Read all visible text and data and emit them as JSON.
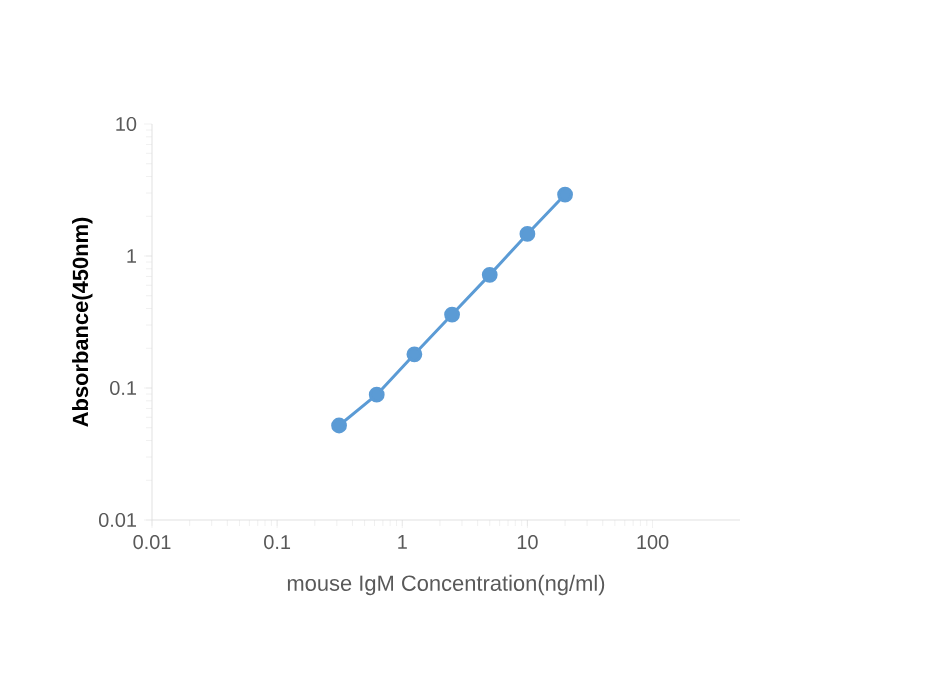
{
  "chart_data": {
    "type": "line",
    "xlabel": "mouse IgM Concentration(ng/ml)",
    "ylabel": "Absorbance(450nm)",
    "log": "xy",
    "xlim": [
      0.01,
      500
    ],
    "ylim": [
      0.01,
      10
    ],
    "xticks": [
      0.01,
      0.1,
      1,
      10,
      100
    ],
    "yticks": [
      0.01,
      0.1,
      1,
      10
    ],
    "x": [
      0.3125,
      0.625,
      1.25,
      2.5,
      5,
      10,
      20
    ],
    "series": [
      {
        "color": "#5b9bd5",
        "values": [
          0.052,
          0.089,
          0.18,
          0.36,
          0.72,
          1.47,
          2.92
        ]
      }
    ],
    "marker": "circle",
    "line_style": "solid",
    "grid": false
  }
}
